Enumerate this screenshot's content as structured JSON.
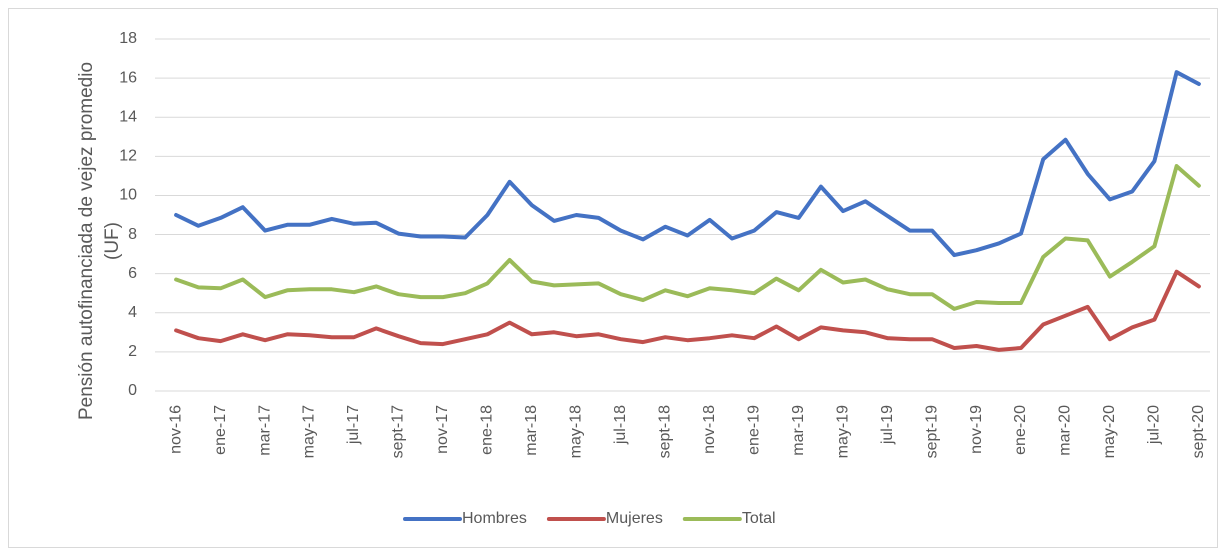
{
  "chart_data": {
    "type": "line",
    "y_label": "Pensión autofinanciada de vejez promedio (UF)",
    "categories": [
      "nov-16",
      null,
      "ene-17",
      null,
      "mar-17",
      null,
      "may-17",
      null,
      "jul-17",
      null,
      "sept-17",
      null,
      "nov-17",
      null,
      "ene-18",
      null,
      "mar-18",
      null,
      "may-18",
      null,
      "jul-18",
      null,
      "sept-18",
      null,
      "nov-18",
      null,
      "ene-19",
      null,
      "mar-19",
      null,
      "may-19",
      null,
      "jul-19",
      null,
      "sept-19",
      null,
      "nov-19",
      null,
      "ene-20",
      null,
      "mar-20",
      null,
      "may-20",
      null,
      "jul-20",
      null,
      "sept-20"
    ],
    "series": [
      {
        "name": "Hombres",
        "color": "#4472c4",
        "values": [
          9.0,
          8.45,
          8.85,
          9.4,
          8.2,
          8.5,
          8.5,
          8.8,
          8.55,
          8.6,
          8.05,
          7.9,
          7.9,
          7.85,
          9.0,
          10.7,
          9.5,
          8.7,
          9.0,
          8.85,
          8.2,
          7.75,
          8.4,
          7.95,
          8.75,
          7.8,
          8.2,
          9.15,
          8.85,
          10.45,
          9.2,
          9.7,
          8.95,
          8.2,
          8.2,
          6.95,
          7.2,
          7.55,
          8.05,
          11.85,
          12.85,
          11.1,
          9.8,
          10.2,
          11.75,
          16.3,
          15.7
        ]
      },
      {
        "name": "Mujeres",
        "color": "#c0504d",
        "values": [
          3.1,
          2.7,
          2.55,
          2.9,
          2.6,
          2.9,
          2.85,
          2.75,
          2.75,
          3.2,
          2.8,
          2.45,
          2.4,
          2.65,
          2.9,
          3.5,
          2.9,
          3.0,
          2.8,
          2.9,
          2.65,
          2.5,
          2.75,
          2.6,
          2.7,
          2.85,
          2.7,
          3.3,
          2.65,
          3.25,
          3.1,
          3.0,
          2.7,
          2.65,
          2.65,
          2.2,
          2.3,
          2.1,
          2.2,
          3.4,
          3.85,
          4.3,
          2.65,
          3.25,
          3.65,
          6.1,
          5.35
        ]
      },
      {
        "name": "Total",
        "color": "#9bbb59",
        "values": [
          5.7,
          5.3,
          5.25,
          5.7,
          4.8,
          5.15,
          5.2,
          5.2,
          5.05,
          5.35,
          4.95,
          4.8,
          4.8,
          5.0,
          5.5,
          6.7,
          5.6,
          5.4,
          5.45,
          5.5,
          4.95,
          4.65,
          5.15,
          4.85,
          5.25,
          5.15,
          5.0,
          5.75,
          5.15,
          6.2,
          5.55,
          5.7,
          5.2,
          4.95,
          4.95,
          4.2,
          4.55,
          4.5,
          4.5,
          6.85,
          7.8,
          7.7,
          5.85,
          6.6,
          7.4,
          11.5,
          10.5
        ]
      }
    ],
    "ylim": [
      0,
      18
    ],
    "yticks": [
      0,
      2,
      4,
      6,
      8,
      10,
      12,
      14,
      16,
      18
    ],
    "grid": true,
    "legend": "bottom"
  }
}
